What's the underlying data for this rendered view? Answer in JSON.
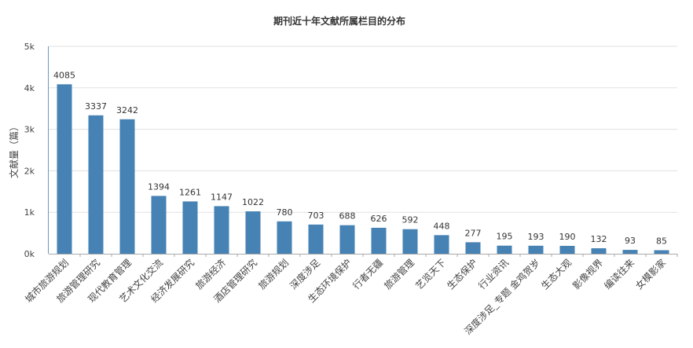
{
  "chart_data": {
    "type": "bar",
    "title": "期刊近十年文献所属栏目的分布",
    "xlabel": "",
    "ylabel": "文献量（篇）",
    "ylim": [
      0,
      5000
    ],
    "yticks": [
      0,
      1000,
      2000,
      3000,
      4000,
      5000
    ],
    "ytick_labels": [
      "0k",
      "1k",
      "2k",
      "3k",
      "4k",
      "5k"
    ],
    "grid": true,
    "bar_color": "#4682B4",
    "categories": [
      "城市旅游规划",
      "旅游管理研究",
      "现代教育管理",
      "艺术文化交流",
      "经济发展研究",
      "旅游经济",
      "酒店管理研究",
      "旅游规划",
      "深度涉足",
      "生态环境保护",
      "行者无疆",
      "旅游管理",
      "艺览天下",
      "生态保护",
      "行业资讯",
      "深度涉足_专题 金鸡贺岁",
      "生态大观",
      "影像视界",
      "编读往来",
      "女模影家"
    ],
    "values": [
      4085,
      3337,
      3242,
      1394,
      1261,
      1147,
      1022,
      780,
      703,
      688,
      626,
      592,
      448,
      277,
      195,
      193,
      190,
      132,
      93,
      85
    ]
  }
}
